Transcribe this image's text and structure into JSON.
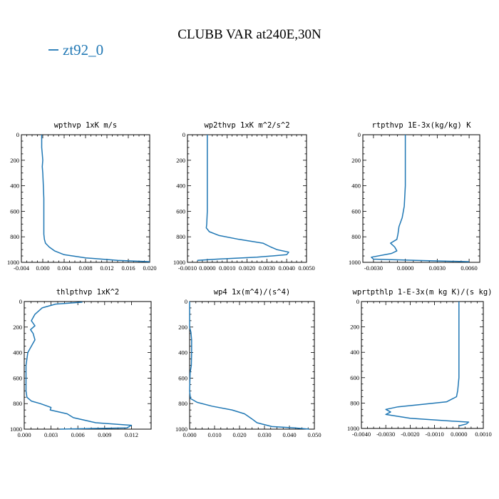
{
  "figure": {
    "title": "CLUBB VAR at240E,30N",
    "legend_label": "zt92_0",
    "series_color": "#1f77b4"
  },
  "chart_data": [
    {
      "type": "line",
      "title": "wpthvp   1xK m/s",
      "xlim": [
        -0.004,
        0.02
      ],
      "ylim": [
        1000,
        0
      ],
      "xticks": [
        -0.004,
        0.0,
        0.004,
        0.008,
        0.012,
        0.016,
        0.02
      ],
      "xtick_labels": [
        "-0.004",
        "0.000",
        "0.004",
        "0.008",
        "0.012",
        "0.016",
        "0.020"
      ],
      "yticks": [
        0,
        200,
        400,
        600,
        800,
        1000
      ],
      "ytick_labels": [
        "0",
        "200",
        "400",
        "600",
        "800",
        "1000"
      ],
      "series": [
        {
          "name": "zt92_0",
          "x": [
            -0.0002,
            -0.0002,
            -0.0001,
            0.0,
            -0.0001,
            0.0,
            0.0001,
            0.0002,
            0.0002,
            0.0002,
            0.0002,
            0.0003,
            0.0005,
            0.0012,
            0.0022,
            0.004,
            0.008,
            0.014,
            0.02
          ],
          "y": [
            0,
            100,
            150,
            200,
            250,
            300,
            400,
            500,
            600,
            700,
            780,
            820,
            850,
            880,
            910,
            940,
            965,
            985,
            995
          ]
        }
      ]
    },
    {
      "type": "line",
      "title": "wp2thvp   1xK m^2/s^2",
      "xlim": [
        -0.001,
        0.005
      ],
      "ylim": [
        1000,
        0
      ],
      "xticks": [
        -0.001,
        0.0,
        0.001,
        0.002,
        0.003,
        0.004,
        0.005
      ],
      "xtick_labels": [
        "-0.0010",
        "0.0000",
        "0.0010",
        "0.0020",
        "0.0030",
        "0.0040",
        "0.0050"
      ],
      "yticks": [
        0,
        200,
        400,
        600,
        800,
        1000
      ],
      "ytick_labels": [
        "0",
        "200",
        "400",
        "600",
        "800",
        "1000"
      ],
      "series": [
        {
          "name": "zt92_0",
          "x": [
            0.0,
            0.0,
            0.0,
            -3e-05,
            -5e-05,
            0.0001,
            0.0006,
            0.0016,
            0.0028,
            0.0032,
            0.0035,
            0.0041,
            0.004,
            0.0025,
            0.0005,
            -0.0005
          ],
          "y": [
            0,
            300,
            600,
            700,
            730,
            760,
            790,
            820,
            850,
            880,
            900,
            920,
            940,
            960,
            975,
            985
          ]
        }
      ]
    },
    {
      "type": "line",
      "title": "rtpthvp   1E-3x(kg/kg) K",
      "xlim": [
        -0.004,
        0.007
      ],
      "ylim": [
        1000,
        0
      ],
      "xticks": [
        -0.003,
        0.0,
        0.003,
        0.006
      ],
      "xtick_labels": [
        "-0.0030",
        "0.0000",
        "0.0030",
        "0.0060"
      ],
      "yticks": [
        0,
        200,
        400,
        600,
        800,
        1000
      ],
      "ytick_labels": [
        "0",
        "200",
        "400",
        "600",
        "800",
        "1000"
      ],
      "series": [
        {
          "name": "zt92_0",
          "x": [
            0.0,
            0.0,
            -0.0001,
            -0.0003,
            -0.0006,
            -0.0007,
            -0.0008,
            -0.0014,
            -0.001,
            -0.0008,
            -0.0013,
            -0.0032,
            -0.003,
            0.001,
            0.006
          ],
          "y": [
            0,
            400,
            560,
            650,
            720,
            780,
            820,
            850,
            880,
            910,
            930,
            960,
            975,
            985,
            995
          ]
        }
      ]
    },
    {
      "type": "line",
      "title": "thlpthvp   1xK^2",
      "xlim": [
        0.0,
        0.0142
      ],
      "ylim": [
        1000,
        0
      ],
      "xticks": [
        0.0,
        0.003,
        0.006,
        0.009,
        0.012
      ],
      "xtick_labels": [
        "0.000",
        "0.003",
        "0.006",
        "0.009",
        "0.012"
      ],
      "yticks": [
        0,
        200,
        400,
        600,
        800,
        1000
      ],
      "ytick_labels": [
        "0",
        "200",
        "400",
        "600",
        "800",
        "1000"
      ],
      "series": [
        {
          "name": "zt92_0",
          "x": [
            0.0065,
            0.0035,
            0.002,
            0.0012,
            0.0008,
            0.0012,
            0.0007,
            0.001,
            0.0012,
            0.0008,
            0.0004,
            0.0002,
            0.0002,
            0.0002,
            0.0003,
            0.0008,
            0.0018,
            0.003,
            0.0029,
            0.0048,
            0.0055,
            0.008,
            0.012,
            0.0115,
            0.004
          ],
          "y": [
            5,
            20,
            50,
            100,
            150,
            190,
            220,
            250,
            300,
            350,
            400,
            500,
            600,
            700,
            750,
            780,
            800,
            830,
            850,
            880,
            910,
            950,
            970,
            990,
            1000
          ]
        }
      ]
    },
    {
      "type": "line",
      "title": "wp4   1x(m^4)/(s^4)",
      "xlim": [
        0.0,
        0.05
      ],
      "ylim": [
        1000,
        0
      ],
      "xticks": [
        0.0,
        0.01,
        0.02,
        0.03,
        0.04,
        0.05
      ],
      "xtick_labels": [
        "0.000",
        "0.010",
        "0.020",
        "0.030",
        "0.040",
        "0.050"
      ],
      "yticks": [
        0,
        200,
        400,
        600,
        800,
        1000
      ],
      "ytick_labels": [
        "0",
        "200",
        "400",
        "600",
        "800",
        "1000"
      ],
      "series": [
        {
          "name": "zt92_0",
          "x": [
            0.0,
            0.0,
            0.0005,
            0.0008,
            0.0008,
            0.0007,
            0.0002,
            0.0,
            0.0003,
            0.003,
            0.009,
            0.017,
            0.022,
            0.0235,
            0.025,
            0.027,
            0.033,
            0.042,
            0.048
          ],
          "y": [
            0,
            200,
            240,
            300,
            400,
            500,
            560,
            700,
            760,
            790,
            820,
            850,
            880,
            900,
            920,
            950,
            980,
            990,
            1000
          ]
        }
      ]
    },
    {
      "type": "line",
      "title": "wprtpthlp   1-E-3x(m kg K)/(s kg)",
      "xlim": [
        -0.004,
        0.001
      ],
      "ylim": [
        1000,
        0
      ],
      "xticks": [
        -0.004,
        -0.003,
        -0.002,
        -0.001,
        0.0,
        0.001
      ],
      "xtick_labels": [
        "-0.0040",
        "-0.0030",
        "-0.0020",
        "-0.0010",
        "0.0000",
        "0.0010"
      ],
      "yticks": [
        0,
        200,
        400,
        600,
        800,
        1000
      ],
      "ytick_labels": [
        "0",
        "200",
        "400",
        "600",
        "800",
        "1000"
      ],
      "series": [
        {
          "name": "zt92_0",
          "x": [
            0.0,
            0.0,
            0.0,
            -5e-05,
            -0.0001,
            -0.0005,
            -0.0015,
            -0.0025,
            -0.003,
            -0.0028,
            -0.003,
            -0.002,
            -0.0005,
            0.0004,
            0.0003,
            0.0
          ],
          "y": [
            0,
            400,
            600,
            700,
            750,
            790,
            810,
            830,
            850,
            870,
            890,
            920,
            940,
            950,
            965,
            980
          ]
        }
      ]
    }
  ]
}
